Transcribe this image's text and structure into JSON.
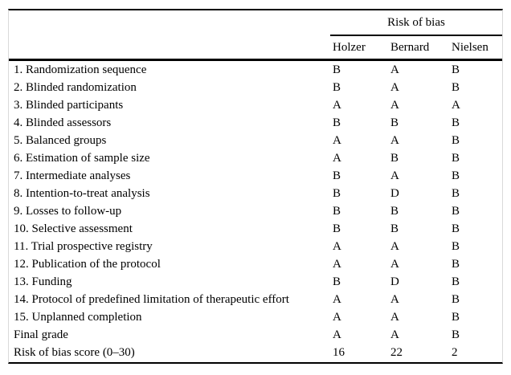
{
  "table": {
    "group_header": "Risk of bias",
    "columns": [
      "Holzer",
      "Bernard",
      "Nielsen"
    ],
    "rows": [
      {
        "label": "1. Randomization sequence",
        "values": [
          "B",
          "A",
          "B"
        ]
      },
      {
        "label": "2. Blinded randomization",
        "values": [
          "B",
          "A",
          "B"
        ]
      },
      {
        "label": "3. Blinded participants",
        "values": [
          "A",
          "A",
          "A"
        ]
      },
      {
        "label": "4. Blinded assessors",
        "values": [
          "B",
          "B",
          "B"
        ]
      },
      {
        "label": "5. Balanced groups",
        "values": [
          "A",
          "A",
          "B"
        ]
      },
      {
        "label": "6. Estimation of sample size",
        "values": [
          "A",
          "B",
          "B"
        ]
      },
      {
        "label": "7. Intermediate analyses",
        "values": [
          "B",
          "A",
          "B"
        ]
      },
      {
        "label": "8. Intention-to-treat analysis",
        "values": [
          "B",
          "D",
          "B"
        ]
      },
      {
        "label": "9. Losses to follow-up",
        "values": [
          "B",
          "B",
          "B"
        ]
      },
      {
        "label": "10. Selective assessment",
        "values": [
          "B",
          "B",
          "B"
        ]
      },
      {
        "label": "11. Trial prospective registry",
        "values": [
          "A",
          "A",
          "B"
        ]
      },
      {
        "label": "12. Publication of the protocol",
        "values": [
          "A",
          "A",
          "B"
        ]
      },
      {
        "label": "13. Funding",
        "values": [
          "B",
          "D",
          "B"
        ]
      },
      {
        "label": "14. Protocol of predefined limitation of therapeutic effort",
        "values": [
          "A",
          "A",
          "B"
        ]
      },
      {
        "label": "15. Unplanned completion",
        "values": [
          "A",
          "A",
          "B"
        ]
      },
      {
        "label": "Final grade",
        "values": [
          "A",
          "A",
          "B"
        ]
      },
      {
        "label": "Risk of bias score (0–30)",
        "values": [
          "16",
          "22",
          "2"
        ]
      }
    ],
    "colors": {
      "background": "#ffffff",
      "text": "#000000",
      "rule": "#000000",
      "side_border": "#d9d9d9"
    }
  }
}
